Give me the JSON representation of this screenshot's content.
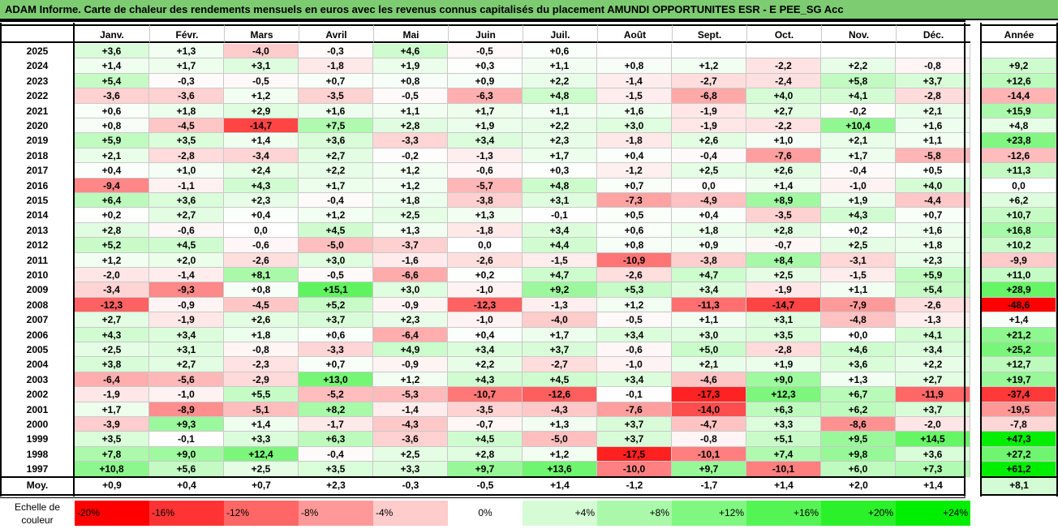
{
  "title": "ADAM Informe. Carte de chaleur des rendements mensuels en euros avec les revenus connus capitalisés du placement AMUNDI OPPORTUNITES ESR - E PEE_SG Acc",
  "chart_data": {
    "type": "heatmap",
    "columns": [
      "Janv.",
      "Févr.",
      "Mars",
      "Avril",
      "Mai",
      "Juin",
      "Juil.",
      "Août",
      "Sept.",
      "Oct.",
      "Nov.",
      "Déc."
    ],
    "year_column": "Année",
    "rows": [
      {
        "year": "2025",
        "months": [
          "+3,6",
          "+1,3",
          "-4,0",
          "-0,3",
          "+4,6",
          "-0,5",
          "+0,6",
          "",
          "",
          "",
          "",
          ""
        ],
        "annual": ""
      },
      {
        "year": "2024",
        "months": [
          "+1,4",
          "+1,7",
          "+3,1",
          "-1,8",
          "+1,9",
          "+0,3",
          "+1,1",
          "+0,8",
          "+1,2",
          "-2,2",
          "+2,2",
          "-0,8"
        ],
        "annual": "+9,2"
      },
      {
        "year": "2023",
        "months": [
          "+5,4",
          "-0,3",
          "-0,5",
          "+0,7",
          "+0,8",
          "+0,9",
          "+2,2",
          "-1,4",
          "-2,7",
          "-2,4",
          "+5,8",
          "+3,7"
        ],
        "annual": "+12,6"
      },
      {
        "year": "2022",
        "months": [
          "-3,6",
          "-3,6",
          "+1,2",
          "-3,5",
          "-0,5",
          "-6,3",
          "+4,8",
          "-1,5",
          "-6,8",
          "+4,0",
          "+4,1",
          "-2,8"
        ],
        "annual": "-14,4"
      },
      {
        "year": "2021",
        "months": [
          "+0,6",
          "+1,8",
          "+2,9",
          "+1,6",
          "+1,1",
          "+1,7",
          "+1,1",
          "+1,6",
          "-1,9",
          "+2,7",
          "-0,2",
          "+2,1"
        ],
        "annual": "+15,9"
      },
      {
        "year": "2020",
        "months": [
          "+0,8",
          "-4,5",
          "-14,7",
          "+7,5",
          "+2,8",
          "+1,9",
          "+2,2",
          "+3,0",
          "-1,9",
          "-2,2",
          "+10,4",
          "+1,6"
        ],
        "annual": "+4,8"
      },
      {
        "year": "2019",
        "months": [
          "+5,9",
          "+3,5",
          "+1,4",
          "+3,6",
          "-3,3",
          "+3,4",
          "+2,3",
          "-1,8",
          "+2,6",
          "+1,0",
          "+2,1",
          "+1,1"
        ],
        "annual": "+23,8"
      },
      {
        "year": "2018",
        "months": [
          "+2,1",
          "-2,8",
          "-3,4",
          "+2,7",
          "-0,2",
          "-1,3",
          "+1,7",
          "+0,4",
          "-0,4",
          "-7,6",
          "+1,7",
          "-5,8"
        ],
        "annual": "-12,6"
      },
      {
        "year": "2017",
        "months": [
          "+0,4",
          "+1,0",
          "+2,4",
          "+2,2",
          "+1,2",
          "-0,6",
          "+0,3",
          "-1,2",
          "+2,5",
          "+2,6",
          "-0,4",
          "+0,5"
        ],
        "annual": "+11,3"
      },
      {
        "year": "2016",
        "months": [
          "-9,4",
          "-1,1",
          "+4,3",
          "+1,7",
          "+1,2",
          "-5,7",
          "+4,8",
          "+0,7",
          "0,0",
          "+1,4",
          "-1,0",
          "+4,0"
        ],
        "annual": "0,0"
      },
      {
        "year": "2015",
        "months": [
          "+6,4",
          "+3,6",
          "+2,3",
          "-0,4",
          "+1,8",
          "-3,8",
          "+3,1",
          "-7,3",
          "-4,9",
          "+8,9",
          "+1,9",
          "-4,4"
        ],
        "annual": "+6,2"
      },
      {
        "year": "2014",
        "months": [
          "+0,2",
          "+2,7",
          "+0,4",
          "+1,2",
          "+2,5",
          "+1,3",
          "-0,1",
          "+0,5",
          "+0,4",
          "-3,5",
          "+4,3",
          "+0,7"
        ],
        "annual": "+10,7"
      },
      {
        "year": "2013",
        "months": [
          "+2,8",
          "-0,6",
          "0,0",
          "+4,5",
          "+1,3",
          "-1,8",
          "+3,4",
          "+0,6",
          "+1,8",
          "+2,8",
          "+0,2",
          "+1,6"
        ],
        "annual": "+16,8"
      },
      {
        "year": "2012",
        "months": [
          "+5,2",
          "+4,5",
          "-0,6",
          "-5,0",
          "-3,7",
          "0,0",
          "+4,4",
          "+0,8",
          "+0,9",
          "-0,7",
          "+2,5",
          "+1,8"
        ],
        "annual": "+10,2"
      },
      {
        "year": "2011",
        "months": [
          "+1,2",
          "+2,0",
          "-2,6",
          "+3,0",
          "-1,6",
          "-2,6",
          "-1,5",
          "-10,9",
          "-3,8",
          "+8,4",
          "-3,1",
          "+2,3"
        ],
        "annual": "-9,9"
      },
      {
        "year": "2010",
        "months": [
          "-2,0",
          "-1,4",
          "+8,1",
          "-0,5",
          "-6,6",
          "+0,2",
          "+4,7",
          "-2,6",
          "+4,7",
          "+2,5",
          "-1,5",
          "+5,9"
        ],
        "annual": "+11,0"
      },
      {
        "year": "2009",
        "months": [
          "-3,4",
          "-9,3",
          "+0,8",
          "+15,1",
          "+3,0",
          "-1,0",
          "+9,2",
          "+5,3",
          "+3,4",
          "-1,9",
          "+1,1",
          "+5,4"
        ],
        "annual": "+28,9"
      },
      {
        "year": "2008",
        "months": [
          "-12,3",
          "-0,9",
          "-4,5",
          "+5,2",
          "-0,9",
          "-12,3",
          "-1,3",
          "+1,2",
          "-11,3",
          "-14,7",
          "-7,9",
          "-2,6"
        ],
        "annual": "-48,6"
      },
      {
        "year": "2007",
        "months": [
          "+2,7",
          "-1,9",
          "+2,6",
          "+3,7",
          "+2,3",
          "-1,0",
          "-4,0",
          "-0,5",
          "+1,1",
          "+3,1",
          "-4,8",
          "-1,3"
        ],
        "annual": "+1,4"
      },
      {
        "year": "2006",
        "months": [
          "+4,3",
          "+3,4",
          "+1,8",
          "+0,6",
          "-6,4",
          "+0,4",
          "+1,7",
          "+3,4",
          "+3,0",
          "+3,5",
          "+0,0",
          "+4,1"
        ],
        "annual": "+21,2"
      },
      {
        "year": "2005",
        "months": [
          "+2,5",
          "+3,1",
          "-0,8",
          "-3,3",
          "+4,9",
          "+3,4",
          "+3,7",
          "-0,6",
          "+5,0",
          "-2,8",
          "+4,6",
          "+3,4"
        ],
        "annual": "+25,2"
      },
      {
        "year": "2004",
        "months": [
          "+3,8",
          "+2,7",
          "-2,3",
          "+0,7",
          "-0,9",
          "+2,2",
          "-2,7",
          "-1,0",
          "+2,1",
          "+1,9",
          "+3,6",
          "+2,2"
        ],
        "annual": "+12,7"
      },
      {
        "year": "2003",
        "months": [
          "-6,4",
          "-5,6",
          "-2,9",
          "+13,0",
          "+1,2",
          "+4,3",
          "+4,5",
          "+3,4",
          "-4,6",
          "+9,0",
          "+1,3",
          "+2,7"
        ],
        "annual": "+19,7"
      },
      {
        "year": "2002",
        "months": [
          "-1,9",
          "-1,0",
          "+5,5",
          "-5,2",
          "-5,3",
          "-10,7",
          "-12,6",
          "-0,1",
          "-17,3",
          "+12,3",
          "+6,7",
          "-11,9"
        ],
        "annual": "-37,4"
      },
      {
        "year": "2001",
        "months": [
          "+1,7",
          "-8,9",
          "-5,1",
          "+8,2",
          "-1,4",
          "-3,5",
          "-4,3",
          "-7,6",
          "-14,0",
          "+6,3",
          "+6,2",
          "+3,7"
        ],
        "annual": "-19,5"
      },
      {
        "year": "2000",
        "months": [
          "-3,9",
          "+9,3",
          "+1,4",
          "-1,7",
          "-4,3",
          "-0,7",
          "+1,3",
          "+3,7",
          "-4,7",
          "+3,3",
          "-8,6",
          "-2,0"
        ],
        "annual": "-7,8"
      },
      {
        "year": "1999",
        "months": [
          "+3,5",
          "-0,1",
          "+3,3",
          "+6,3",
          "-3,6",
          "+4,5",
          "-5,0",
          "+3,7",
          "-0,8",
          "+5,1",
          "+9,5",
          "+14,5"
        ],
        "annual": "+47,3"
      },
      {
        "year": "1998",
        "months": [
          "+7,8",
          "+9,0",
          "+12,4",
          "-0,4",
          "+2,5",
          "+2,8",
          "+1,2",
          "-17,5",
          "-10,1",
          "+7,4",
          "+9,8",
          "+3,6"
        ],
        "annual": "+27,2"
      },
      {
        "year": "1997",
        "months": [
          "+10,8",
          "+5,6",
          "+2,5",
          "+3,5",
          "+3,3",
          "+9,7",
          "+13,6",
          "-10,0",
          "+9,7",
          "-10,1",
          "+6,0",
          "+7,3"
        ],
        "annual": "+61,2"
      }
    ],
    "average_row": {
      "label": "Moy.",
      "months": [
        "+0,9",
        "+0,4",
        "+0,7",
        "+2,3",
        "-0,3",
        "-0,5",
        "+1,4",
        "-1,2",
        "-1,7",
        "+1,4",
        "+2,0",
        "+1,4"
      ],
      "annual": "+8,1"
    },
    "color_scale": {
      "label_line1": "Echelle de",
      "label_line2": "couleur",
      "stops": [
        "-20%",
        "-16%",
        "-12%",
        "-8%",
        "-4%",
        "0%",
        "+4%",
        "+8%",
        "+12%",
        "+16%",
        "+20%",
        "+24%"
      ],
      "negative_color": "#ff0000",
      "zero_color": "#ffffff",
      "positive_color": "#00ee00"
    }
  }
}
